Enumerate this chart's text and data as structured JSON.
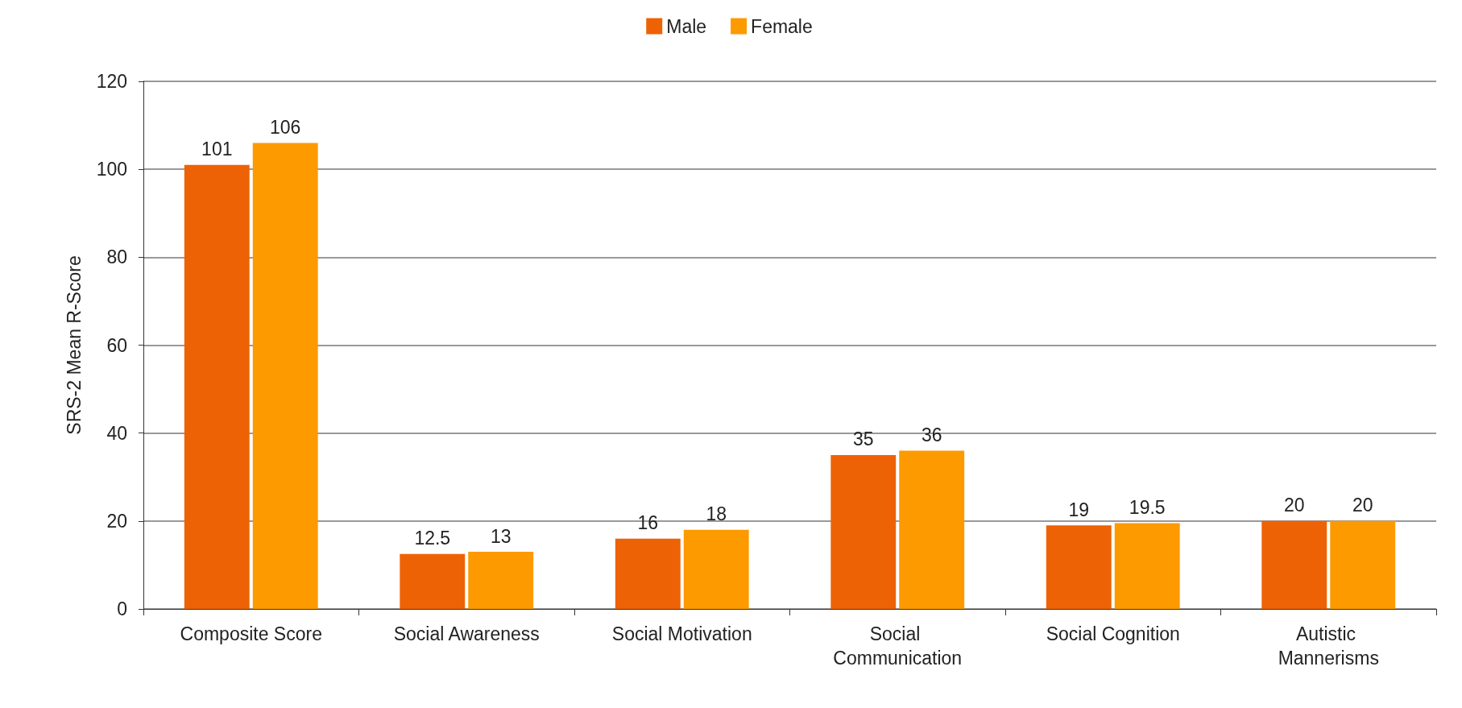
{
  "chart_data": {
    "type": "bar",
    "ylabel": "SRS-2 Mean R-Score",
    "categories": [
      "Composite Score",
      "Social Awareness",
      "Social Motivation",
      "Social Communication",
      "Social Cognition",
      "Autistic Mannerisms"
    ],
    "series": [
      {
        "name": "Male",
        "color": "#ee6206",
        "values": [
          101,
          12.5,
          16,
          35,
          19,
          20
        ]
      },
      {
        "name": "Female",
        "color": "#fd9a00",
        "values": [
          106,
          13,
          18,
          36,
          19.5,
          20
        ]
      }
    ],
    "ylim": [
      0,
      120
    ],
    "yticks": [
      0,
      20,
      40,
      60,
      80,
      100,
      120
    ],
    "grid": "y",
    "legend": "top",
    "data_labels": true
  }
}
